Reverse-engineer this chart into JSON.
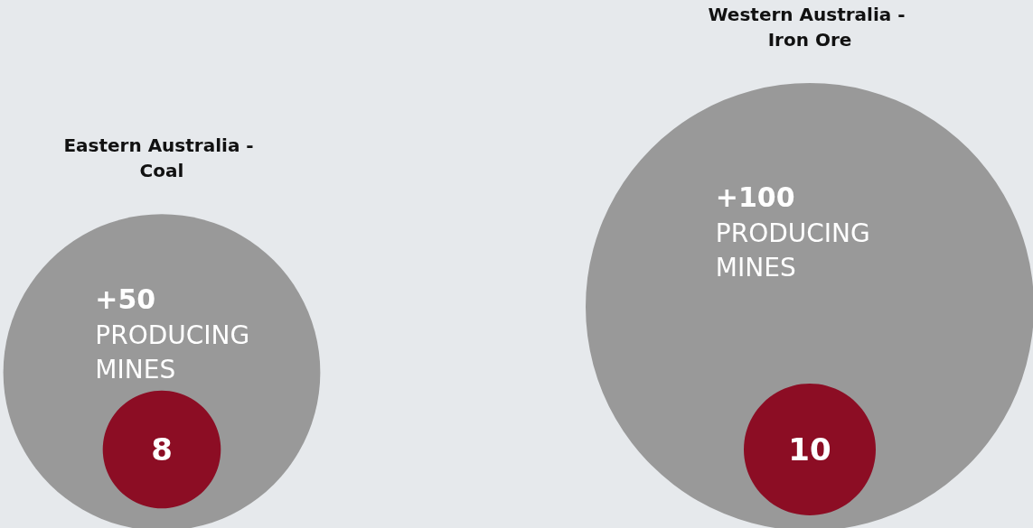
{
  "chart_data": {
    "type": "other",
    "categories": [
      "Eastern Australia - Coal",
      "Western Australia - Iron Ore"
    ],
    "series": [
      {
        "name": "PRODUCING MINES",
        "color": "#999999",
        "values": [
          50,
          100
        ],
        "value_labels": [
          "+50",
          "+100"
        ]
      },
      {
        "color": "#8c0d24",
        "values": [
          8,
          10
        ],
        "data_labels": true
      }
    ]
  }
}
